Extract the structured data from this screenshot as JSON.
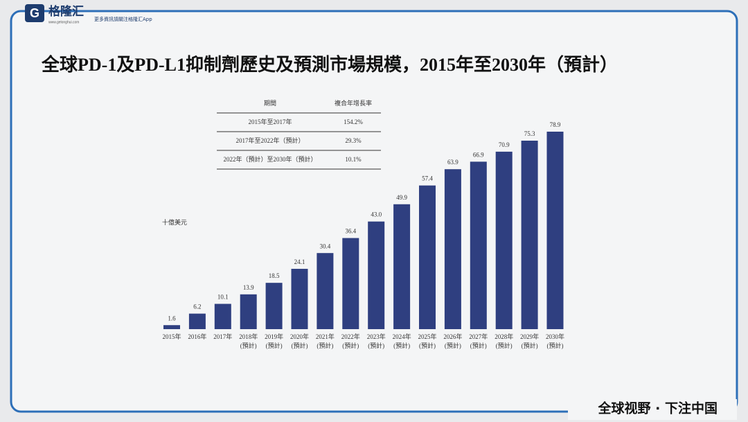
{
  "chart_data": {
    "type": "bar",
    "title": "全球PD-1及PD-L1抑制劑歷史及預測市場規模，2015年至2030年（預計）",
    "y_unit": "十億美元",
    "categories": [
      "2015年",
      "2016年",
      "2017年",
      "2018年",
      "2019年",
      "2020年",
      "2021年",
      "2022年",
      "2023年",
      "2024年",
      "2025年",
      "2026年",
      "2027年",
      "2028年",
      "2029年",
      "2030年"
    ],
    "category_notes": [
      null,
      null,
      null,
      "(預計)",
      "(預計)",
      "(預計)",
      "(預計)",
      "(預計)",
      "(預計)",
      "(預計)",
      "(預計)",
      "(預計)",
      "(預計)",
      "(預計)",
      "(預計)",
      "(預計)"
    ],
    "values": [
      1.6,
      6.2,
      10.1,
      13.9,
      18.5,
      24.1,
      30.4,
      36.4,
      43.0,
      49.9,
      57.4,
      63.9,
      66.9,
      70.9,
      75.3,
      78.9
    ],
    "value_labels": [
      "1.6",
      "6.2",
      "10.1",
      "13.9",
      "18.5",
      "24.1",
      "30.4",
      "36.4",
      "43.0",
      "49.9",
      "57.4",
      "63.9",
      "66.9",
      "70.9",
      "75.3",
      "78.9"
    ],
    "color": "#2f3f80",
    "cagr_table": {
      "header": [
        "期間",
        "複合年增長率"
      ],
      "rows": [
        [
          "2015年至2017年",
          "154.2%"
        ],
        [
          "2017年至2022年（預計）",
          "29.3%"
        ],
        [
          "2022年（預計）至2030年（預計）",
          "10.1%"
        ]
      ]
    }
  },
  "branding": {
    "logo": "格隆汇",
    "logo_url": "www.gelonghui.com",
    "tagline": "更多資訊請關注格隆汇App",
    "footer": "全球视野 · 下注中国"
  }
}
